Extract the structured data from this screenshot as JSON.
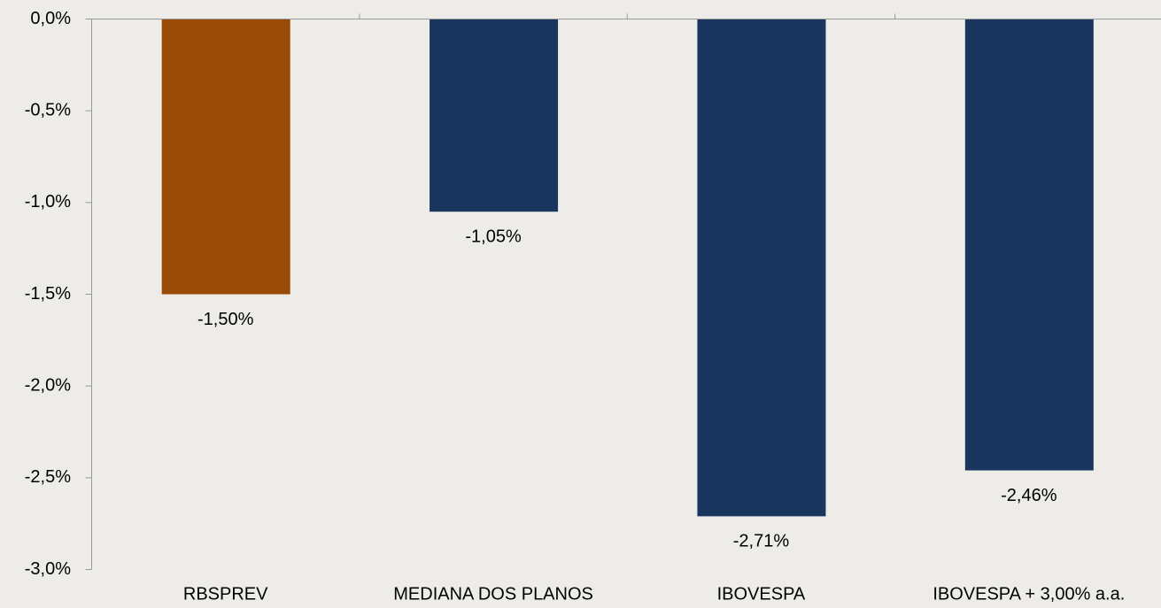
{
  "chart_data": {
    "type": "bar",
    "categories": [
      "RBSPREV",
      "MEDIANA DOS PLANOS",
      "IBOVESPA",
      "IBOVESPA + 3,00% a.a."
    ],
    "values": [
      -1.5,
      -1.05,
      -2.71,
      -2.46
    ],
    "value_labels": [
      "-1,50%",
      "-1,05%",
      "-2,71%",
      "-2,46%"
    ],
    "colors": [
      "#994a06",
      "#1a365e",
      "#1a365e",
      "#1a365e"
    ],
    "ylim": [
      -3.0,
      0
    ],
    "yticks": [
      {
        "value": 0,
        "label": "0,0%"
      },
      {
        "value": -0.5,
        "label": "-0,5%"
      },
      {
        "value": -1.0,
        "label": "-1,0%"
      },
      {
        "value": -1.5,
        "label": "-1,5%"
      },
      {
        "value": -2.0,
        "label": "-2,0%"
      },
      {
        "value": -2.5,
        "label": "-2,5%"
      },
      {
        "value": -3.0,
        "label": "-3,0%"
      }
    ],
    "grid": false
  }
}
